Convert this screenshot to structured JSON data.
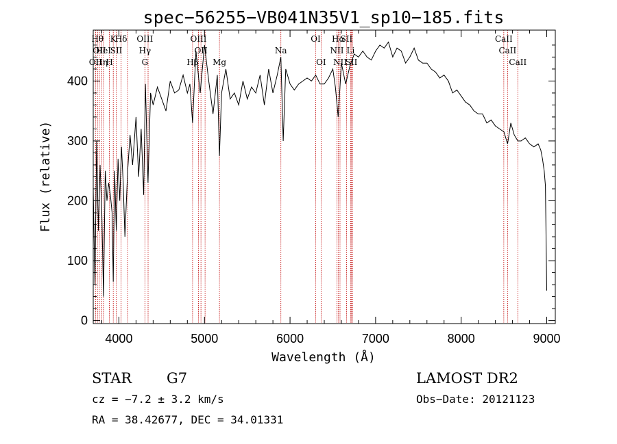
{
  "chart_data": {
    "type": "line",
    "title": "spec−56255−VB041N35V1_sp10−185.fits",
    "xlabel": "Wavelength (Å)",
    "ylabel": "Flux (relative)",
    "xlim": [
      3700,
      9100
    ],
    "ylim": [
      -5,
      485
    ],
    "xticks": [
      4000,
      5000,
      6000,
      7000,
      8000,
      9000
    ],
    "xtick_labels": [
      "4000",
      "5000",
      "6000",
      "7000",
      "8000",
      "9000"
    ],
    "yticks": [
      0,
      100,
      200,
      300,
      400
    ],
    "ytick_labels": [
      "0",
      "100",
      "200",
      "300",
      "400"
    ],
    "grid": false,
    "series": [
      {
        "color": "#000000",
        "x": [
          3700,
          3720,
          3740,
          3760,
          3780,
          3800,
          3820,
          3840,
          3860,
          3880,
          3900,
          3920,
          3934,
          3950,
          3969,
          3990,
          4010,
          4030,
          4050,
          4070,
          4102,
          4130,
          4160,
          4200,
          4230,
          4260,
          4290,
          4310,
          4340,
          4370,
          4400,
          4450,
          4500,
          4550,
          4600,
          4650,
          4700,
          4750,
          4800,
          4830,
          4861,
          4900,
          4950,
          5000,
          5050,
          5100,
          5150,
          5175,
          5200,
          5250,
          5300,
          5350,
          5400,
          5450,
          5500,
          5550,
          5600,
          5650,
          5700,
          5750,
          5800,
          5850,
          5893,
          5920,
          5950,
          6000,
          6050,
          6100,
          6150,
          6200,
          6250,
          6300,
          6350,
          6400,
          6450,
          6500,
          6530,
          6563,
          6600,
          6650,
          6700,
          6750,
          6800,
          6850,
          6900,
          6950,
          7000,
          7050,
          7100,
          7150,
          7200,
          7250,
          7300,
          7350,
          7400,
          7450,
          7500,
          7550,
          7600,
          7650,
          7700,
          7750,
          7800,
          7850,
          7900,
          7950,
          8000,
          8050,
          8100,
          8150,
          8200,
          8250,
          8300,
          8350,
          8400,
          8450,
          8500,
          8542,
          8580,
          8620,
          8662,
          8700,
          8750,
          8800,
          8850,
          8900,
          8930,
          8950,
          8970,
          8985,
          9000
        ],
        "y": [
          220,
          60,
          300,
          150,
          260,
          180,
          40,
          250,
          200,
          230,
          210,
          180,
          65,
          250,
          150,
          270,
          200,
          290,
          230,
          140,
          250,
          310,
          260,
          340,
          240,
          320,
          210,
          395,
          230,
          380,
          360,
          390,
          370,
          350,
          400,
          380,
          385,
          410,
          380,
          395,
          330,
          450,
          380,
          460,
          400,
          345,
          410,
          275,
          380,
          420,
          370,
          380,
          360,
          400,
          370,
          390,
          380,
          410,
          360,
          420,
          380,
          410,
          440,
          300,
          420,
          395,
          385,
          395,
          400,
          405,
          400,
          410,
          395,
          395,
          405,
          420,
          390,
          340,
          430,
          395,
          425,
          445,
          440,
          450,
          440,
          435,
          450,
          460,
          455,
          465,
          440,
          455,
          450,
          430,
          440,
          455,
          435,
          430,
          430,
          420,
          415,
          405,
          410,
          400,
          380,
          385,
          375,
          365,
          360,
          350,
          345,
          345,
          330,
          335,
          325,
          320,
          315,
          295,
          330,
          310,
          300,
          300,
          305,
          295,
          290,
          295,
          285,
          270,
          250,
          225,
          50
        ]
      }
    ],
    "line_markers": [
      {
        "x": 3727,
        "labels": [
          "OII"
        ],
        "row": 2
      },
      {
        "x": 3750,
        "labels": [
          "Hθ"
        ],
        "row": 0
      },
      {
        "x": 3771,
        "labels": [
          "OII"
        ],
        "row": 1
      },
      {
        "x": 3798,
        "labels": [
          "Hη"
        ],
        "row": 2
      },
      {
        "x": 3820,
        "labels": [
          "HeI"
        ],
        "row": 1
      },
      {
        "x": 3889,
        "labels": [
          "H"
        ],
        "row": 2
      },
      {
        "x": 3934,
        "labels": [
          "K"
        ],
        "row": 0
      },
      {
        "x": 3969,
        "labels": [
          "SII"
        ],
        "row": 1
      },
      {
        "x": 4026,
        "labels": [
          "Hδ"
        ],
        "row": 0
      },
      {
        "x": 4102,
        "labels": [],
        "row": 0
      },
      {
        "x": 4304,
        "labels": [
          "OIII",
          "Hγ",
          "G"
        ],
        "row": 0
      },
      {
        "x": 4341,
        "labels": [],
        "row": 0
      },
      {
        "x": 4861,
        "labels": [
          "Hβ"
        ],
        "row": 2
      },
      {
        "x": 4930,
        "labels": [
          "OIII"
        ],
        "row": 0
      },
      {
        "x": 4959,
        "labels": [
          "OII"
        ],
        "row": 1
      },
      {
        "x": 5007,
        "labels": [],
        "row": 0
      },
      {
        "x": 5175,
        "labels": [
          "Mg"
        ],
        "row": 2
      },
      {
        "x": 5893,
        "labels": [
          "Na"
        ],
        "row": 1
      },
      {
        "x": 6300,
        "labels": [
          "OI"
        ],
        "row": 0
      },
      {
        "x": 6363,
        "labels": [
          "OI"
        ],
        "row": 2
      },
      {
        "x": 6548,
        "labels": [
          "NII"
        ],
        "row": 1
      },
      {
        "x": 6563,
        "labels": [
          "Hα"
        ],
        "row": 0
      },
      {
        "x": 6584,
        "labels": [
          "NII"
        ],
        "row": 2
      },
      {
        "x": 6660,
        "labels": [
          "SII"
        ],
        "row": 0
      },
      {
        "x": 6708,
        "labels": [
          "Li"
        ],
        "row": 1
      },
      {
        "x": 6717,
        "labels": [
          "SII"
        ],
        "row": 2
      },
      {
        "x": 6731,
        "labels": [],
        "row": 0
      },
      {
        "x": 8498,
        "labels": [
          "CaII"
        ],
        "row": 0
      },
      {
        "x": 8542,
        "labels": [
          "CaII"
        ],
        "row": 1
      },
      {
        "x": 8662,
        "labels": [
          "CaII"
        ],
        "row": 2
      }
    ],
    "marker_color": "#c00000"
  },
  "info": {
    "object_class": "STAR",
    "subclass": "G7",
    "survey": "LAMOST DR2",
    "redshift": "cz = −7.2 ± 3.2 km/s",
    "obs_date": "Obs−Date: 20121123",
    "coords": "RA =  38.42677, DEC =  34.01331"
  }
}
